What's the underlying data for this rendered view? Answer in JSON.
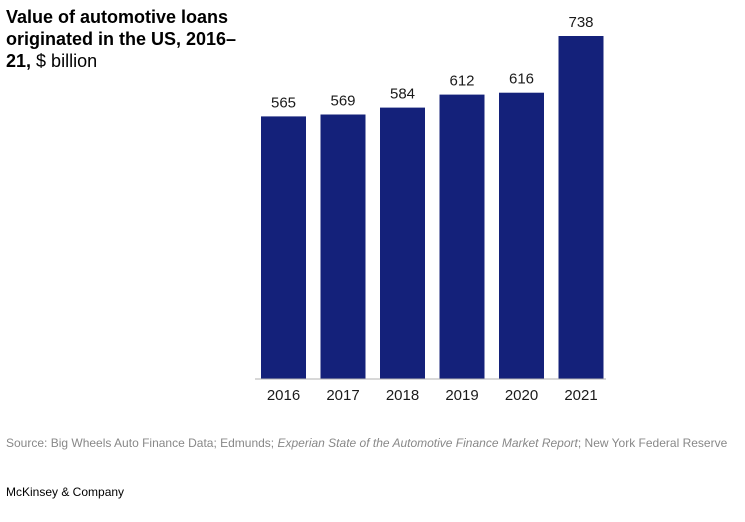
{
  "chart_data": {
    "type": "bar",
    "title": "Value of automotive loans originated in the US, 2016–21,",
    "unit": "$ billion",
    "categories": [
      "2016",
      "2017",
      "2018",
      "2019",
      "2020",
      "2021"
    ],
    "values": [
      565,
      569,
      584,
      612,
      616,
      738
    ],
    "value_labels": [
      "565",
      "569",
      "584",
      "612",
      "616",
      "738"
    ],
    "xlabel": "",
    "ylabel": "",
    "ylim": [
      0,
      738
    ],
    "grid": false,
    "bar_color": "#14217a"
  },
  "source": {
    "prefix": "Source: Big Wheels Auto Finance Data; Edmunds; ",
    "italic": "Experian State of the Automotive Finance Market Report",
    "suffix": "; New York Federal Reserve"
  },
  "brand": "McKinsey & Company"
}
